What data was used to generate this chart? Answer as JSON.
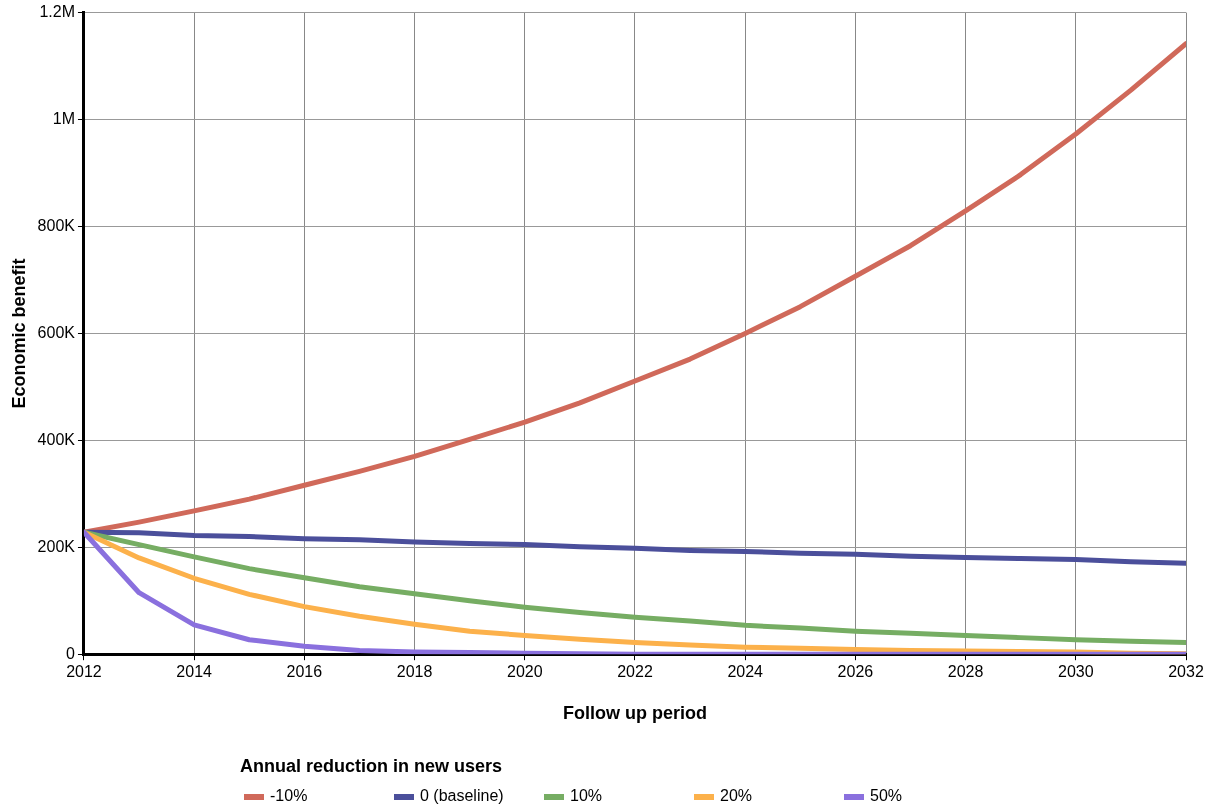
{
  "chart_data": {
    "type": "line",
    "xlabel": "Follow up period",
    "ylabel": "Economic benefit",
    "legend_title": "Annual reduction in new users",
    "legend": "bottom",
    "grid": true,
    "marker": "none",
    "line_style": "solid",
    "x": [
      2012,
      2013,
      2014,
      2015,
      2016,
      2017,
      2018,
      2019,
      2020,
      2021,
      2022,
      2023,
      2024,
      2025,
      2026,
      2027,
      2028,
      2029,
      2030,
      2031,
      2032
    ],
    "xlim": [
      2012,
      2032
    ],
    "xticks": [
      2012,
      2014,
      2016,
      2018,
      2020,
      2022,
      2024,
      2026,
      2028,
      2030,
      2032
    ],
    "ylim": [
      0,
      1200000
    ],
    "yticks": [
      {
        "value": 0,
        "label": "0"
      },
      {
        "value": 200000,
        "label": "200K"
      },
      {
        "value": 400000,
        "label": "400K"
      },
      {
        "value": 600000,
        "label": "600K"
      },
      {
        "value": 800000,
        "label": "800K"
      },
      {
        "value": 1000000,
        "label": "1M"
      },
      {
        "value": 1200000,
        "label": "1.2M"
      }
    ],
    "series": [
      {
        "name": "-10%",
        "color": "#d0695a",
        "values": [
          228000,
          247000,
          268000,
          290000,
          316000,
          342000,
          370000,
          402000,
          434000,
          470000,
          511000,
          552000,
          600000,
          650000,
          707000,
          764000,
          829000,
          897000,
          973000,
          1055000,
          1142000
        ]
      },
      {
        "name": "0 (baseline)",
        "color": "#4b4f9b",
        "values": [
          228000,
          227000,
          222000,
          220000,
          216000,
          214000,
          210000,
          207000,
          205000,
          201000,
          198000,
          194000,
          192000,
          189000,
          187000,
          183000,
          181000,
          179000,
          177000,
          173000,
          170000
        ]
      },
      {
        "name": "10%",
        "color": "#76ad63",
        "values": [
          228000,
          205000,
          182000,
          160000,
          143000,
          126000,
          113000,
          100000,
          88000,
          78000,
          69000,
          62000,
          54000,
          49000,
          43000,
          39000,
          35000,
          31000,
          27000,
          24000,
          22000
        ]
      },
      {
        "name": "20%",
        "color": "#fcb14b",
        "values": [
          228000,
          180000,
          142000,
          112000,
          89000,
          71000,
          56000,
          43000,
          35000,
          28000,
          22000,
          17000,
          13000,
          11000,
          9000,
          7000,
          6000,
          5000,
          4000,
          2000,
          1000
        ]
      },
      {
        "name": "50%",
        "color": "#8a70de",
        "values": [
          228000,
          115000,
          55000,
          27000,
          15000,
          7000,
          4000,
          3000,
          2000,
          1000,
          0,
          0,
          0,
          0,
          0,
          0,
          0,
          0,
          0,
          0,
          0
        ]
      }
    ]
  }
}
